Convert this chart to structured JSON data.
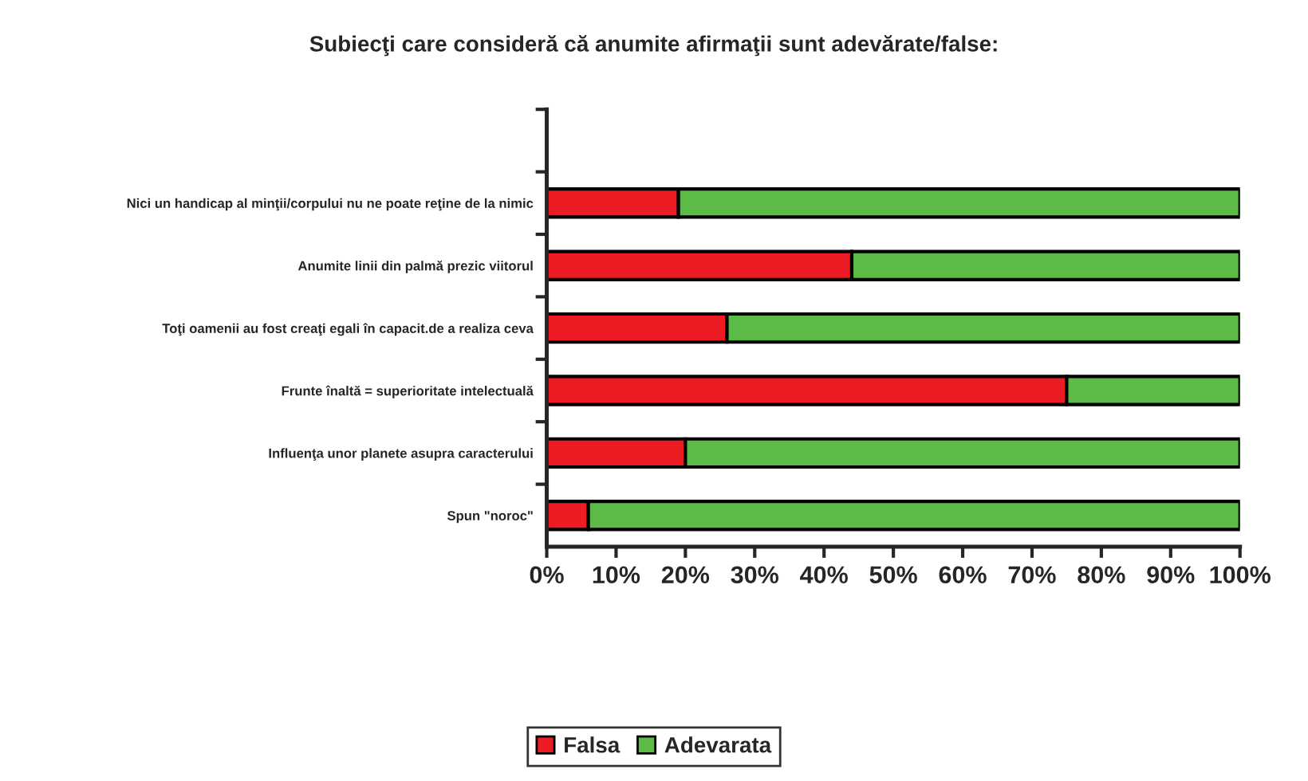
{
  "chart_data": {
    "type": "bar",
    "orientation": "horizontal",
    "stacked": true,
    "title": "Subiecţi care consideră că anumite afirmaţii sunt adevărate/false:",
    "categories": [
      null,
      "Nici un handicap al minţii/corpului nu ne poate reţine de la nimic",
      "Anumite linii din palmă prezic viitorul",
      "Toţi oamenii au fost creaţi egali în capacit.de a realiza ceva",
      "Frunte înaltă = superioritate intelectuală",
      "Influenţa unor planete asupra caracterului",
      "Spun \"noroc\""
    ],
    "series": [
      {
        "name": "Falsa",
        "color": "#ed1c24",
        "values": [
          null,
          19,
          44,
          26,
          75,
          20,
          6
        ]
      },
      {
        "name": "Adevarata",
        "color": "#5cbb46",
        "values": [
          null,
          81,
          56,
          74,
          25,
          80,
          94
        ]
      }
    ],
    "xlim": [
      0,
      100
    ],
    "xticks": [
      {
        "value": 0,
        "label": "0%"
      },
      {
        "value": 10,
        "label": "10%"
      },
      {
        "value": 20,
        "label": "20%"
      },
      {
        "value": 30,
        "label": "30%"
      },
      {
        "value": 40,
        "label": "40%"
      },
      {
        "value": 50,
        "label": "50%"
      },
      {
        "value": 60,
        "label": "60%"
      },
      {
        "value": 70,
        "label": "70%"
      },
      {
        "value": 80,
        "label": "80%"
      },
      {
        "value": 90,
        "label": "90%"
      },
      {
        "value": 100,
        "label": "100%"
      }
    ],
    "grid": false,
    "legend": "bottom"
  }
}
